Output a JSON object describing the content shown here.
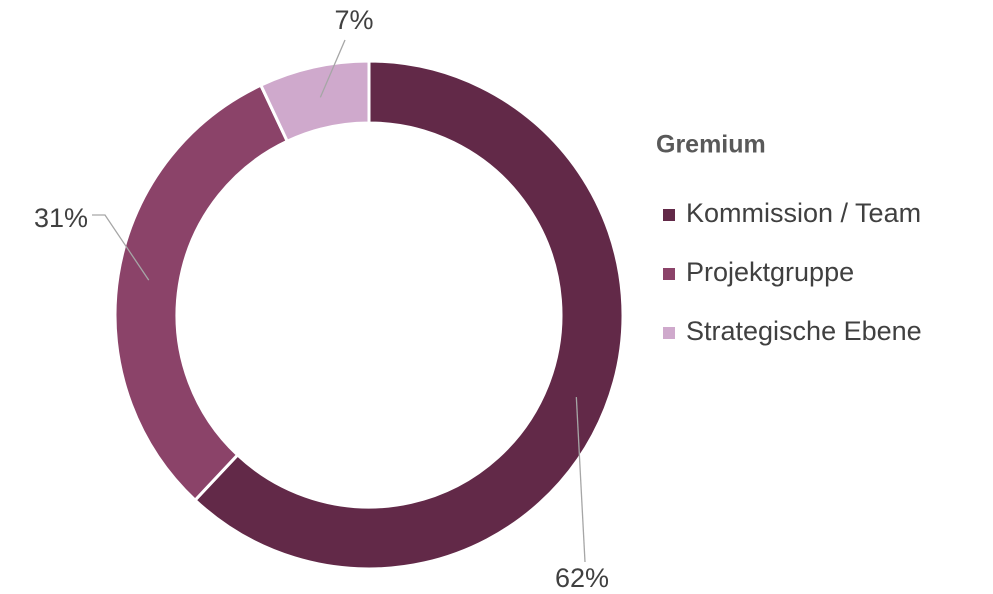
{
  "chart_data": {
    "type": "donut",
    "categories": [
      "Kommission / Team",
      "Projektgruppe",
      "Strategische Ebene"
    ],
    "values": [
      62,
      31,
      7
    ],
    "value_labels": [
      "62%",
      "31%",
      "7%"
    ],
    "colors": [
      "#622948",
      "#8b4369",
      "#cfa9cc"
    ],
    "legend_title": "Gremium",
    "legend": "right"
  }
}
